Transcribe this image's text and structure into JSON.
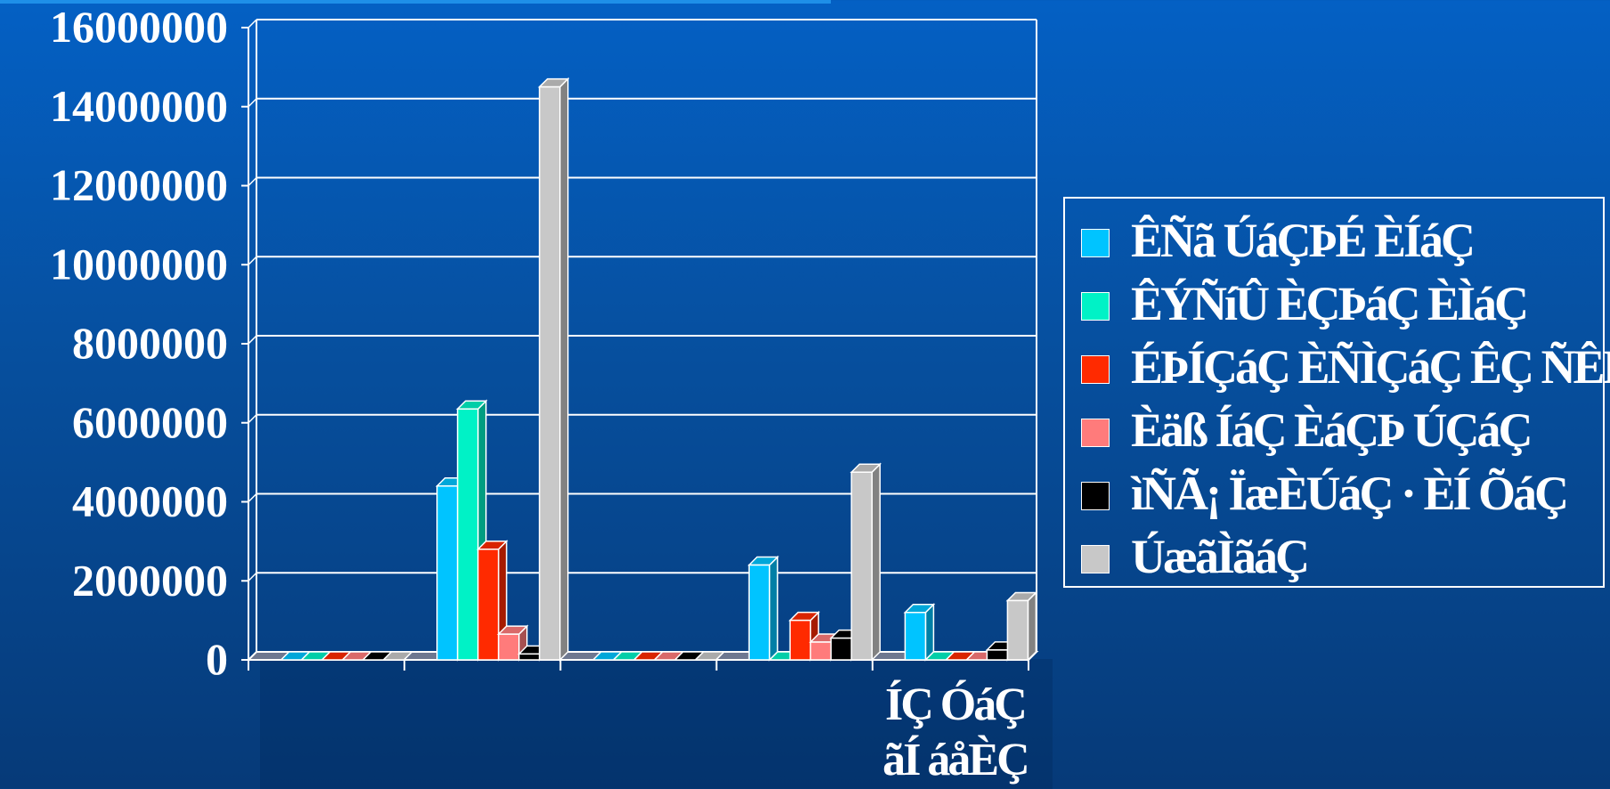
{
  "colors": {
    "background_top": "#0460c4",
    "background_bottom": "#063a78",
    "grid": "#ffffff",
    "text": "#ffffff"
  },
  "chart_data": {
    "type": "bar",
    "title": "",
    "xlabel": "",
    "ylabel": "",
    "ylim": [
      0,
      16000000
    ],
    "yticks": [
      "16000000",
      "14000000",
      "12000000",
      "10000000",
      "8000000",
      "6000000",
      "4000000",
      "2000000",
      "0"
    ],
    "grid": true,
    "legend_position": "right",
    "categories": [
      "",
      "",
      "",
      "",
      "ÍÇ ÓáÇ ãÍáåÇ"
    ],
    "category_label_lines": [
      "ÍÇ ÓáÇ",
      "ãÍ áåÈÇ"
    ],
    "series": [
      {
        "name": "ÊÑã ÚáÇÞÉ ÈÍáÇ",
        "color": "#00c4ff",
        "values": [
          0,
          4400000,
          0,
          2400000,
          1200000
        ]
      },
      {
        "name": "ÊÝÑíÛ ÈÇÞáÇ ÈÌáÇ",
        "color": "#00f2c6",
        "values": [
          0,
          6350000,
          0,
          0,
          0
        ]
      },
      {
        "name": "ÉÞÍÇáÇ ÈÑÌÇáÇ ÊÇ ÑÊÞÒ",
        "color": "#ff2a00",
        "values": [
          0,
          2800000,
          0,
          1000000,
          0
        ]
      },
      {
        "name": "Èäß ÍáÇ ÈáÇÞ ÚÇáÇ",
        "color": "#ff7b7b",
        "values": [
          0,
          650000,
          0,
          450000,
          0
        ]
      },
      {
        "name": "ìÑÃ¡ ÏæÈÚáÇ · ÈÍ ÕáÇ",
        "color": "#000000",
        "values": [
          0,
          150000,
          0,
          550000,
          250000
        ]
      },
      {
        "name": "ÚæãÌãáÇ",
        "color": "#c8c8c8",
        "values": [
          0,
          14500000,
          0,
          4750000,
          1500000
        ]
      }
    ]
  }
}
